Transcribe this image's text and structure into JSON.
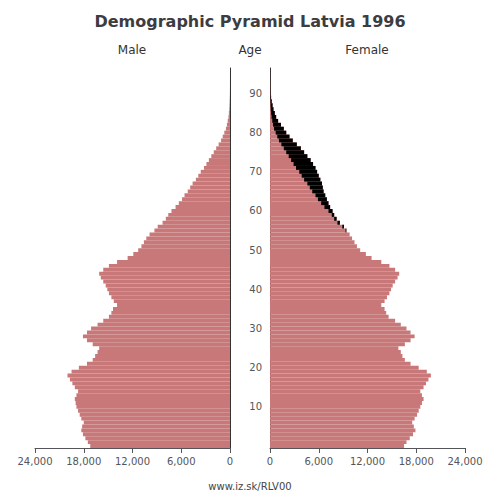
{
  "chart_data": {
    "type": "bar",
    "orientation": "horizontal",
    "title": "Demographic Pyramid Latvia 1996",
    "ylabel": "Age",
    "annotations": [
      "www.iz.sk/RLV00"
    ],
    "grid": false,
    "categories": [
      null,
      null,
      null,
      null,
      null,
      null,
      null,
      null,
      null,
      null,
      "10",
      null,
      null,
      null,
      null,
      null,
      null,
      null,
      null,
      null,
      "20",
      null,
      null,
      null,
      null,
      null,
      null,
      null,
      null,
      null,
      "30",
      null,
      null,
      null,
      null,
      null,
      null,
      null,
      null,
      null,
      "40",
      null,
      null,
      null,
      null,
      null,
      null,
      null,
      null,
      null,
      "50",
      null,
      null,
      null,
      null,
      null,
      null,
      null,
      null,
      null,
      "60",
      null,
      null,
      null,
      null,
      null,
      null,
      null,
      null,
      null,
      "70",
      null,
      null,
      null,
      null,
      null,
      null,
      null,
      null,
      null,
      "80",
      null,
      null,
      null,
      null,
      null,
      null,
      null,
      null,
      null,
      "90",
      null,
      null,
      null,
      null,
      null,
      null
    ],
    "xlim": [
      0,
      24000
    ],
    "xticks": [
      0,
      6000,
      12000,
      18000,
      24000
    ],
    "series": [
      {
        "name": "Male",
        "color": "#C87878",
        "values": [
          17200,
          17500,
          17800,
          18100,
          18300,
          18200,
          18000,
          18300,
          18500,
          18700,
          18900,
          19000,
          19100,
          18900,
          18700,
          19100,
          19400,
          19700,
          20000,
          19500,
          18600,
          17600,
          16900,
          16600,
          16300,
          16100,
          16900,
          17600,
          18100,
          17600,
          17100,
          16300,
          15600,
          14900,
          14600,
          14400,
          13900,
          14300,
          14600,
          14900,
          15100,
          15300,
          15600,
          15900,
          16100,
          15600,
          14900,
          13900,
          12600,
          11900,
          11300,
          10900,
          10600,
          10300,
          9900,
          9300,
          8900,
          8300,
          7900,
          7600,
          7200,
          6700,
          6300,
          5900,
          5600,
          5200,
          4900,
          4600,
          4200,
          3900,
          3600,
          3200,
          2900,
          2600,
          2300,
          2000,
          1700,
          1400,
          1100,
          900,
          700,
          500,
          380,
          280,
          190,
          140,
          95,
          70,
          50,
          32,
          18,
          12,
          8,
          5,
          3,
          2,
          1
        ]
      },
      {
        "name": "Female",
        "color": "#C87878",
        "values": [
          16500,
          16800,
          17200,
          17600,
          17900,
          17700,
          17500,
          17800,
          18100,
          18300,
          18500,
          18700,
          18900,
          18700,
          18500,
          18900,
          19200,
          19500,
          19800,
          19300,
          18300,
          17300,
          16600,
          16300,
          16100,
          15800,
          16600,
          17300,
          17800,
          17300,
          16800,
          16100,
          15400,
          14600,
          14300,
          14100,
          13700,
          14100,
          14400,
          14700,
          14900,
          15100,
          15400,
          15700,
          15900,
          15400,
          14700,
          13700,
          12500,
          11800,
          11100,
          10700,
          10400,
          10100,
          9800,
          9400,
          9100,
          8600,
          8200,
          7900,
          7700,
          7400,
          7200,
          7000,
          6800,
          6600,
          6500,
          6400,
          6200,
          6000,
          5800,
          5600,
          5300,
          5000,
          4600,
          4200,
          3800,
          3300,
          2800,
          2400,
          2000,
          1700,
          1350,
          1000,
          760,
          590,
          430,
          320,
          215,
          135,
          90,
          62,
          42,
          27,
          17,
          10,
          6
        ]
      },
      {
        "color": "#000000",
        "values": [
          null,
          null,
          null,
          null,
          null,
          null,
          null,
          null,
          null,
          null,
          null,
          null,
          null,
          null,
          null,
          null,
          null,
          null,
          null,
          null,
          null,
          null,
          null,
          null,
          null,
          null,
          null,
          null,
          null,
          null,
          null,
          null,
          null,
          null,
          null,
          null,
          null,
          null,
          null,
          null,
          null,
          null,
          null,
          null,
          null,
          null,
          null,
          null,
          null,
          null,
          null,
          null,
          null,
          null,
          null,
          100,
          200,
          300,
          300,
          300,
          500,
          700,
          900,
          1100,
          1200,
          1400,
          1600,
          1800,
          2000,
          2100,
          2200,
          2400,
          2400,
          2400,
          2300,
          2200,
          2100,
          1900,
          1700,
          1500,
          1300,
          1200,
          970,
          720,
          570,
          450,
          335,
          250,
          165,
          103,
          72,
          50,
          34,
          22,
          14,
          8,
          5
        ]
      }
    ]
  }
}
